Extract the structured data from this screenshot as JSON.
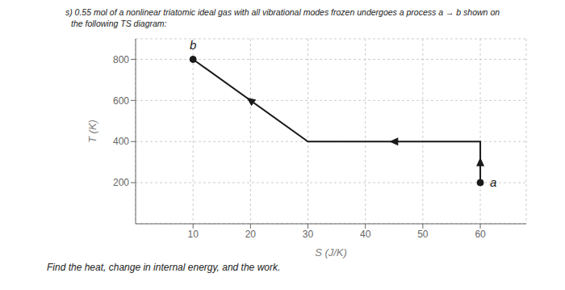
{
  "chart_data": {
    "type": "line",
    "title": "s) 0.55 mol of a nonlinear triatomic ideal gas with all vibrational modes frozen undergoes a process a → b shown on",
    "subtitle": "the following TS diagram:",
    "xlabel": "S (J/K)",
    "ylabel": "T (K)",
    "x": [
      60,
      60,
      30,
      10
    ],
    "values": [
      200,
      400,
      400,
      800
    ],
    "color": "#1a1a1a",
    "xlim": [
      0,
      68
    ],
    "ylim": [
      0,
      900
    ],
    "xticks": [
      10,
      20,
      30,
      40,
      50,
      60
    ],
    "yticks": [
      200,
      400,
      600,
      800
    ],
    "grid": true,
    "annotations": [
      {
        "text": "a",
        "x": 60,
        "y": 200
      },
      {
        "text": "b",
        "x": 10,
        "y": 800
      },
      {
        "text": "Find the heat, change in internal energy, and the work."
      }
    ]
  }
}
